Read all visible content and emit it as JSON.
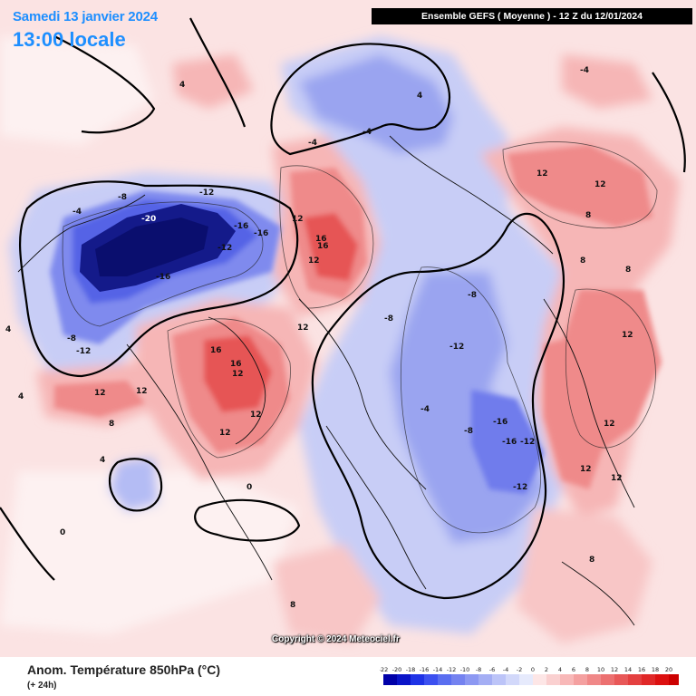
{
  "header": {
    "date_title": "Samedi 13 janvier 2024",
    "time_title": "13:00 locale",
    "run_info": "Ensemble GEFS  ( Moyenne )  - 12 Z du 12/01/2024"
  },
  "footer": {
    "field_title": "Anom. Température 850hPa (°C)",
    "lead_time": "(+ 24h)",
    "copyright": "Copyright © 2024 Meteociel.fr"
  },
  "legend": {
    "values": [
      "-22",
      "-20",
      "-18",
      "-16",
      "-14",
      "-12",
      "-10",
      "-8",
      "-6",
      "-4",
      "-2",
      "0",
      "2",
      "4",
      "6",
      "8",
      "10",
      "12",
      "14",
      "16",
      "18",
      "20"
    ],
    "colors": [
      "#0000a8",
      "#0a14c8",
      "#1e32e6",
      "#3c50f0",
      "#5a6ef0",
      "#7482f0",
      "#8c98f2",
      "#a4aef4",
      "#bcc4f8",
      "#d2d8fa",
      "#e6eafc",
      "#fde6e6",
      "#fad0d0",
      "#f8b8b8",
      "#f4a0a0",
      "#f08888",
      "#ec7070",
      "#e85858",
      "#e44040",
      "#e02828",
      "#dc1010",
      "#cc0000"
    ]
  },
  "map": {
    "colors": {
      "ocean_base": "#fbe3e3",
      "cold_light": "#c8cdf6",
      "cold_mid": "#9aa4f0",
      "cold_strong": "#5564e6",
      "cold_extreme": "#0a0e6e",
      "warm_light": "#f6b6b6",
      "warm_mid": "#ef8a8a",
      "warm_strong": "#e65454"
    },
    "contour_labels": [
      "-20",
      "-16",
      "-16",
      "-16",
      "-12",
      "-12",
      "-12",
      "-8",
      "-8",
      "-4",
      "-4",
      "-4",
      "12",
      "16",
      "16",
      "12",
      "12",
      "16",
      "16",
      "12",
      "12",
      "12",
      "12",
      "-12",
      "-8",
      "-8",
      "-8",
      "-16",
      "-16",
      "-12",
      "-12",
      "12",
      "12",
      "8",
      "12",
      "12",
      "12",
      "8",
      "8",
      "4",
      "4",
      "4",
      "0",
      "0",
      "-4",
      "-4",
      "4",
      "8",
      "8",
      "8",
      "4",
      "12",
      "12"
    ]
  }
}
